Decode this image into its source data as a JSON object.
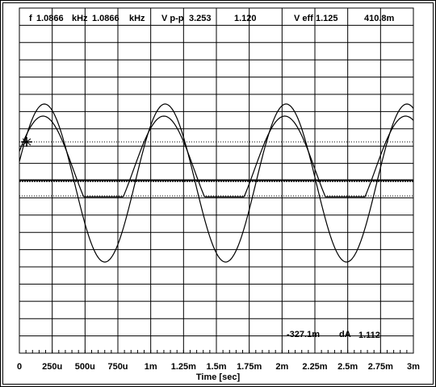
{
  "header": {
    "freq_label": "f",
    "freq_value_1": "1.0866",
    "freq_unit_1": "kHz",
    "freq_value_2": "1.0866",
    "freq_unit_2": "kHz",
    "vpp_label": "V p-p",
    "vpp_value_1": "3.253",
    "vpp_value_2": "1.120",
    "veff_label": "V eff",
    "veff_value_1": "1.125",
    "veff_value_2": "410.8m"
  },
  "measurement": {
    "cursor_value": "-327.1m",
    "delta_label": "dA",
    "delta_value": "1.112"
  },
  "chart_data": {
    "type": "line",
    "title": "",
    "xlabel": "Time [sec]",
    "ylabel": "",
    "x_ticks": [
      0,
      0.00025,
      0.0005,
      0.00075,
      0.001,
      0.00125,
      0.0015,
      0.00175,
      0.002,
      0.00225,
      0.0025,
      0.00275,
      0.003
    ],
    "x_tick_labels": [
      "0",
      "250u",
      "500u",
      "750u",
      "1m",
      "1.25m",
      "1.5m",
      "1.75m",
      "2m",
      "2.25m",
      "2.5m",
      "2.75m",
      "3m"
    ],
    "xlim": [
      0,
      0.003
    ],
    "grid": true,
    "series": [
      {
        "trace": "A",
        "frequency_hz": 1086.6,
        "vpp": 3.253,
        "veff": 1.125,
        "peak_time_s": 0.00019,
        "color": "#000000"
      },
      {
        "trace": "B",
        "frequency_hz": 1086.6,
        "vpp": 1.12,
        "veff": 0.4108,
        "peak_time_s": 0.00018,
        "clipped_at_bottom": true,
        "color": "#000000"
      }
    ],
    "cursors": [
      {
        "style": "dotted",
        "level": "upper"
      },
      {
        "style": "dotted",
        "level": "lower"
      },
      {
        "style": "double",
        "level": "reference"
      }
    ]
  }
}
